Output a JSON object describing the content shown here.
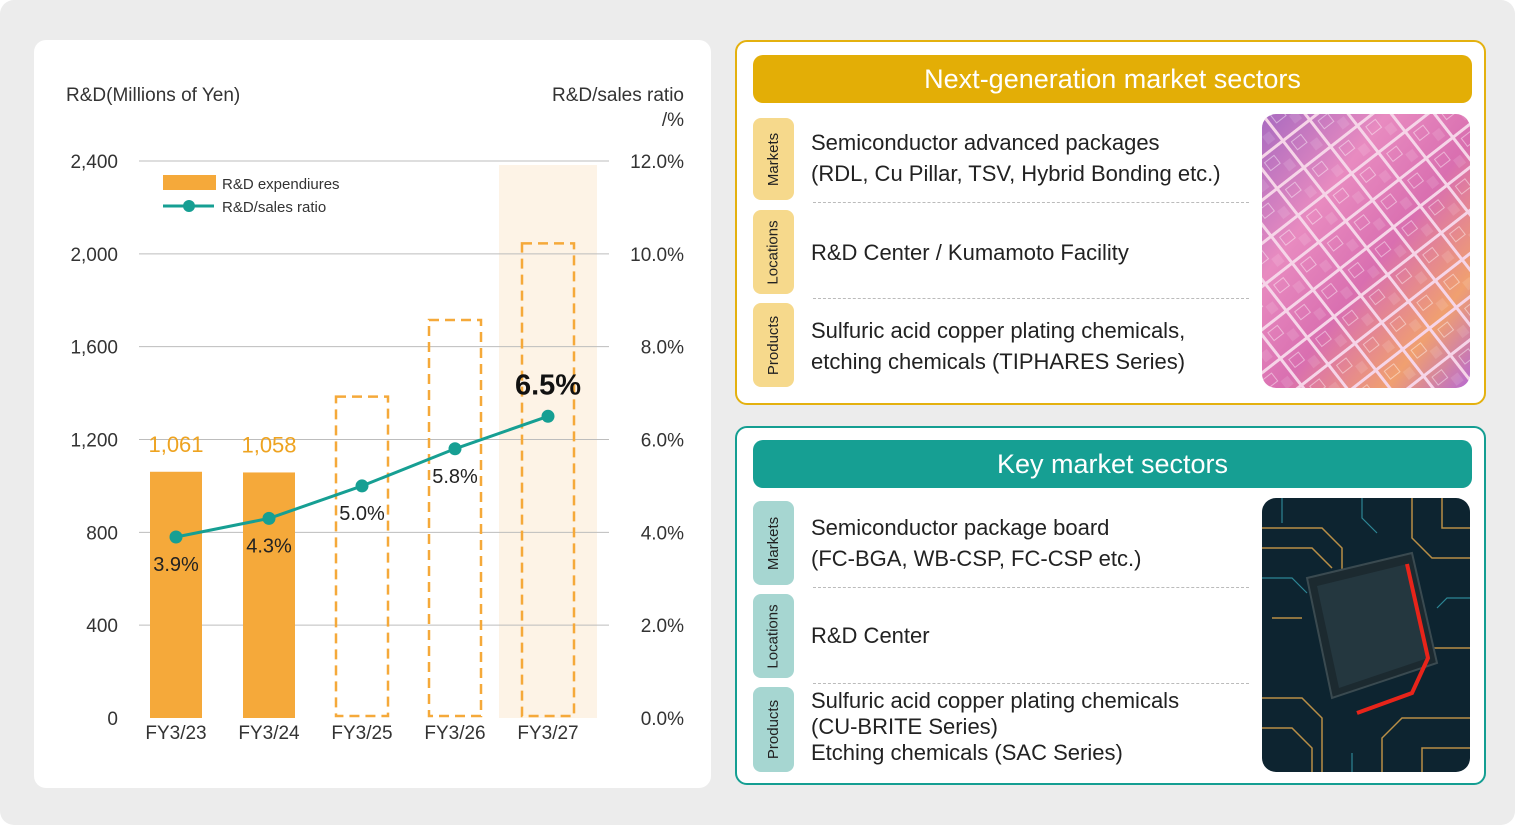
{
  "chart_data": {
    "type": "bar",
    "ylabel": "R&D(Millions of Yen)",
    "y2label_line1": "R&D/sales ratio",
    "y2label_line2": "/%",
    "categories": [
      "FY3/23",
      "FY3/24",
      "FY3/25",
      "FY3/26",
      "FY3/27"
    ],
    "ylim": [
      0,
      2400
    ],
    "y_ticks": [
      "2,400",
      "2,000",
      "1,600",
      "1,200",
      "800",
      "400",
      "0"
    ],
    "y2lim": [
      0,
      12
    ],
    "y2_ticks": [
      "12.0%",
      "10.0%",
      "8.0%",
      "6.0%",
      "4.0%",
      "2.0%",
      "0.0%"
    ],
    "grid": true,
    "legend_position": "top-left",
    "series": [
      {
        "name": "R&D expendiures",
        "kind": "bar",
        "values": [
          1061,
          1058,
          1385,
          1715,
          2045
        ],
        "style": [
          "solid",
          "solid",
          "dashed",
          "dashed",
          "dashed"
        ],
        "labels": [
          "1,061",
          "1,058",
          "",
          "",
          ""
        ],
        "color": "#f5a93a"
      },
      {
        "name": "R&D/sales ratio",
        "kind": "line",
        "axis": "right",
        "values": [
          3.9,
          4.3,
          5.0,
          5.8,
          6.5
        ],
        "labels": [
          "3.9%",
          "4.3%",
          "5.0%",
          "5.8%",
          "6.5%"
        ],
        "color": "#169f93"
      }
    ],
    "highlight_category": "FY3/27",
    "highlight_color": "#fdf3e6"
  },
  "panels": {
    "next": {
      "title": "Next-generation market sectors",
      "accent": "#e3ae06",
      "rows": [
        {
          "tab": "Markets",
          "lines": [
            "Semiconductor advanced packages",
            "(RDL, Cu Pillar, TSV, Hybrid Bonding etc.)"
          ]
        },
        {
          "tab": "Locations",
          "lines": [
            "R&D Center / Kumamoto Facility"
          ]
        },
        {
          "tab": "Products",
          "lines": [
            "Sulfuric acid copper plating chemicals,",
            "etching chemicals (TIPHARES Series)"
          ]
        }
      ]
    },
    "key": {
      "title": "Key market sectors",
      "accent": "#169f93",
      "rows": [
        {
          "tab": "Markets",
          "lines": [
            "Semiconductor package board",
            "(FC-BGA, WB-CSP, FC-CSP etc.)"
          ]
        },
        {
          "tab": "Locations",
          "lines": [
            "R&D Center"
          ]
        },
        {
          "tab": "Products",
          "lines": [
            "Sulfuric acid copper plating chemicals",
            "(CU-BRITE Series)",
            "Etching chemicals (SAC Series)"
          ]
        }
      ]
    }
  }
}
